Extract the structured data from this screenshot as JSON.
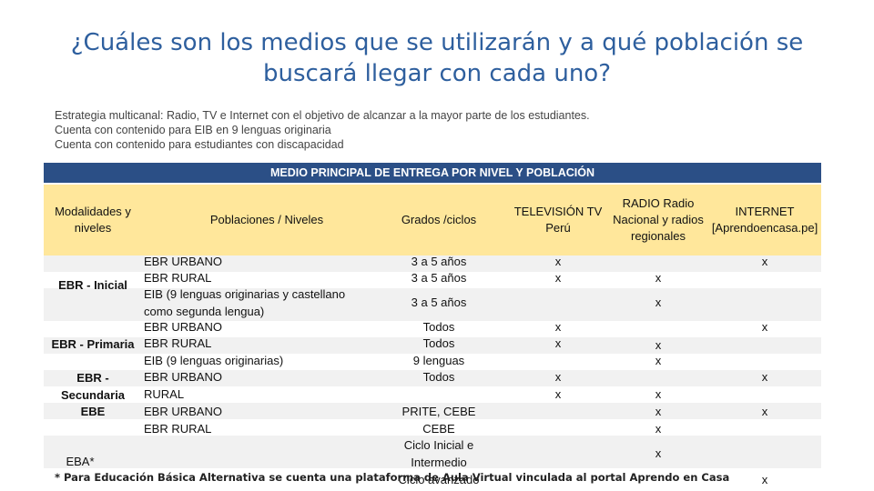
{
  "title": "¿Cuáles son los medios que se utilizarán y a qué población se buscará llegar con cada uno?",
  "intro": {
    "line1": "Estrategia multicanal: Radio, TV e Internet con el objetivo de alcanzar a la mayor parte de los estudiantes.",
    "line2": "Cuenta con contenido para EIB en 9 lenguas originaria",
    "line3": "Cuenta con contenido para estudiantes con discapacidad"
  },
  "table": {
    "banner": "MEDIO PRINCIPAL DE ENTREGA POR NIVEL Y POBLACIÓN",
    "headers": {
      "modalidades": "Modalidades y niveles",
      "poblaciones": "Poblaciones / Niveles",
      "grados": "Grados /ciclos",
      "tv": "TELEVISIÓN TV Perú",
      "radio": "RADIO Radio Nacional y radios regionales",
      "internet": "INTERNET [Aprendoencasa.pe]"
    },
    "modalidades": {
      "inicial": "EBR - Inicial",
      "primaria": "EBR - Primaria",
      "secundaria": "EBR - Secundaria",
      "ebe": "EBE",
      "eba": "EBA*"
    },
    "rows": [
      {
        "poblacion": "EBR URBANO",
        "grados": "3 a 5 años",
        "tv": "x",
        "radio": "",
        "internet": "x"
      },
      {
        "poblacion": "EBR RURAL",
        "grados": "3 a 5 años",
        "tv": "x",
        "radio": "x",
        "internet": ""
      },
      {
        "poblacion": "EIB (9 lenguas originarias y castellano como segunda lengua)",
        "grados": "3 a 5 años",
        "tv": "",
        "radio": "x",
        "internet": ""
      },
      {
        "poblacion": "EBR URBANO",
        "grados": "Todos",
        "tv": "x",
        "radio": "",
        "internet": "x"
      },
      {
        "poblacion": "EBR RURAL",
        "grados": "Todos",
        "tv": "x",
        "radio": "x",
        "internet": ""
      },
      {
        "poblacion": "EIB (9 lenguas originarias)",
        "grados": "9 lenguas",
        "tv": "",
        "radio": "x",
        "internet": ""
      },
      {
        "poblacion": "EBR URBANO",
        "grados": "Todos",
        "tv": "x",
        "radio": "",
        "internet": "x"
      },
      {
        "poblacion": "RURAL",
        "grados": "",
        "tv": "x",
        "radio": "x",
        "internet": ""
      },
      {
        "poblacion": "EBR URBANO",
        "grados": "PRITE, CEBE",
        "tv": "",
        "radio": "x",
        "internet": "x"
      },
      {
        "poblacion": "EBR RURAL",
        "grados": "CEBE",
        "tv": "",
        "radio": "x",
        "internet": ""
      },
      {
        "poblacion": "",
        "grados": "Ciclo Inicial e Intermedio",
        "tv": "",
        "radio": "x",
        "internet": ""
      },
      {
        "poblacion": "",
        "grados": "Ciclo avanzado",
        "tv": "",
        "radio": "",
        "internet": "x"
      }
    ]
  },
  "footnote": "* Para Educación Básica Alternativa se cuenta una plataforma de Aula Virtual vinculada al portal Aprendo en Casa"
}
